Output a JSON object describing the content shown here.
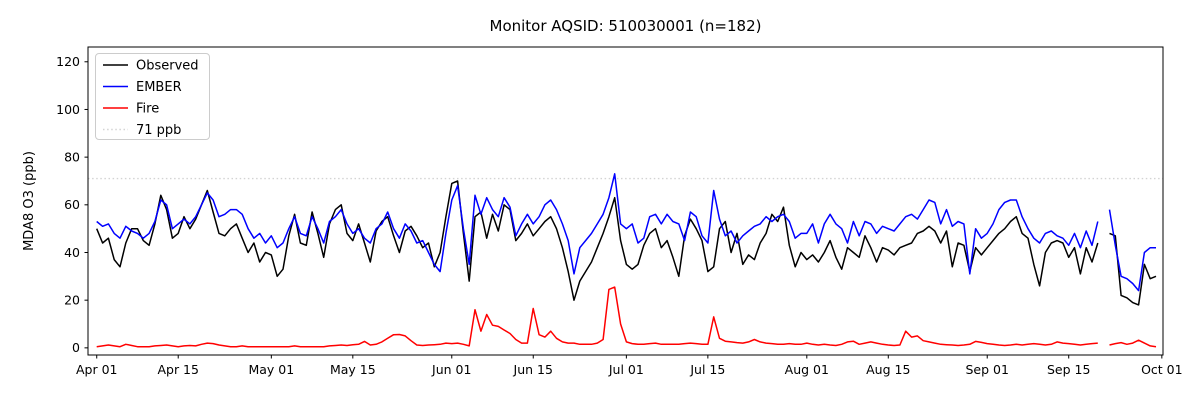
{
  "chart_data": {
    "type": "line",
    "title": "Monitor AQSID: 510030001 (n=182)",
    "ylabel": "MDA8 O3 (ppb)",
    "n_points": 182,
    "grid": false,
    "legend_position": "upper left",
    "ylim": [
      -3,
      126.2
    ],
    "xlim_days": [
      -1.5,
      183.2
    ],
    "yticks": [
      0,
      20,
      40,
      60,
      80,
      100,
      120
    ],
    "x_tick_days": [
      0,
      14,
      30,
      44,
      61,
      75,
      91,
      105,
      122,
      136,
      153,
      167,
      183
    ],
    "x_tick_labels": [
      "Apr 01",
      "Apr 15",
      "May 01",
      "May 15",
      "Jun 01",
      "Jun 15",
      "Jul 01",
      "Jul 15",
      "Aug 01",
      "Aug 15",
      "Sep 01",
      "Sep 15",
      "Oct 01"
    ],
    "reference_line": {
      "label": "71 ppb",
      "value": 71,
      "color": "#d3d3d3",
      "style": "dotted"
    },
    "series": [
      {
        "name": "Observed",
        "color": "#000000",
        "values": [
          50,
          44,
          46,
          37,
          34,
          44,
          50,
          50,
          45,
          43,
          52,
          64,
          58,
          46,
          48,
          55,
          50,
          54,
          60,
          66,
          57,
          48,
          47,
          50,
          52,
          46,
          40,
          44,
          36,
          40,
          39,
          30,
          33,
          47,
          56,
          44,
          43,
          57,
          48,
          38,
          52,
          58,
          60,
          48,
          45,
          52,
          44,
          36,
          49,
          53,
          55,
          47,
          40,
          49,
          51,
          47,
          42,
          44,
          34,
          40,
          55,
          69,
          70,
          48,
          28,
          55,
          57,
          46,
          56,
          49,
          60,
          58,
          45,
          48,
          52,
          47,
          50,
          53,
          55,
          50,
          42,
          32,
          20,
          28,
          32,
          36,
          42,
          48,
          55,
          63,
          45,
          35,
          33,
          35,
          43,
          48,
          50,
          42,
          45,
          38,
          30,
          47,
          54,
          50,
          45,
          32,
          34,
          50,
          53,
          40,
          48,
          35,
          39,
          37,
          44,
          48,
          56,
          53,
          59,
          43,
          34,
          40,
          37,
          39,
          36,
          40,
          45,
          38,
          33,
          42,
          40,
          38,
          47,
          42,
          36,
          42,
          41,
          39,
          42,
          43,
          44,
          48,
          49,
          51,
          49,
          44,
          49,
          34,
          44,
          43,
          32,
          42,
          39,
          42,
          45,
          48,
          50,
          53,
          55,
          48,
          46,
          35,
          26,
          40,
          44,
          45,
          44,
          38,
          42,
          31,
          42,
          36,
          44,
          null,
          48,
          47,
          22,
          21,
          19,
          18,
          35,
          29,
          30
        ]
      },
      {
        "name": "EMBER",
        "color": "#0000ff",
        "values": [
          53,
          51,
          52,
          48,
          46,
          51,
          49,
          48,
          46,
          48,
          53,
          62,
          60,
          50,
          52,
          54,
          52,
          55,
          60,
          65,
          62,
          55,
          56,
          58,
          58,
          56,
          50,
          46,
          48,
          44,
          47,
          42,
          44,
          50,
          55,
          48,
          47,
          55,
          50,
          44,
          53,
          55,
          58,
          52,
          48,
          50,
          46,
          44,
          50,
          52,
          57,
          50,
          46,
          52,
          49,
          44,
          45,
          40,
          35,
          32,
          48,
          62,
          68,
          50,
          35,
          64,
          56,
          63,
          58,
          55,
          63,
          59,
          47,
          52,
          56,
          52,
          55,
          60,
          62,
          58,
          52,
          45,
          31,
          42,
          45,
          48,
          52,
          56,
          63,
          73,
          52,
          50,
          52,
          44,
          46,
          55,
          56,
          52,
          56,
          53,
          52,
          45,
          57,
          55,
          47,
          44,
          66,
          54,
          47,
          49,
          44,
          47,
          49,
          51,
          52,
          55,
          53,
          55,
          56,
          53,
          46,
          48,
          48,
          52,
          44,
          52,
          56,
          52,
          50,
          44,
          53,
          47,
          53,
          52,
          48,
          51,
          50,
          49,
          52,
          55,
          56,
          54,
          58,
          62,
          61,
          52,
          58,
          51,
          53,
          52,
          31,
          50,
          46,
          48,
          52,
          58,
          61,
          62,
          62,
          55,
          50,
          46,
          44,
          48,
          49,
          47,
          46,
          43,
          48,
          42,
          49,
          43,
          53,
          null,
          58,
          43,
          30,
          29,
          27,
          24,
          40,
          42,
          42
        ]
      },
      {
        "name": "Fire",
        "color": "#ff0000",
        "values": [
          0.5,
          0.8,
          1.2,
          0.8,
          0.5,
          1.5,
          1.0,
          0.5,
          0.5,
          0.5,
          0.8,
          1.0,
          1.2,
          0.8,
          0.5,
          0.8,
          1.0,
          0.8,
          1.5,
          2.0,
          1.8,
          1.2,
          0.8,
          0.5,
          0.5,
          0.8,
          0.5,
          0.5,
          0.5,
          0.5,
          0.5,
          0.5,
          0.5,
          0.5,
          0.8,
          0.5,
          0.5,
          0.5,
          0.5,
          0.5,
          0.8,
          1.0,
          1.2,
          1.0,
          1.3,
          1.5,
          2.7,
          1.2,
          1.5,
          2.5,
          4.0,
          5.5,
          5.6,
          5.0,
          3.0,
          1.2,
          1.0,
          1.2,
          1.3,
          1.5,
          2.0,
          1.8,
          2.0,
          1.5,
          0.8,
          16.0,
          7.0,
          14.0,
          9.5,
          9.0,
          7.5,
          6.0,
          3.5,
          2.0,
          2.0,
          16.5,
          5.5,
          4.5,
          7.0,
          4.0,
          2.5,
          2.0,
          2.0,
          1.5,
          1.5,
          1.5,
          2.0,
          3.5,
          24.5,
          25.5,
          10.0,
          2.5,
          1.8,
          1.5,
          1.5,
          1.8,
          2.0,
          1.5,
          1.5,
          1.5,
          1.5,
          1.8,
          2.0,
          1.8,
          1.5,
          1.5,
          13.0,
          4.0,
          2.8,
          2.5,
          2.2,
          2.0,
          2.5,
          3.5,
          2.5,
          2.0,
          1.8,
          1.5,
          1.5,
          1.8,
          1.5,
          1.5,
          2.0,
          1.5,
          1.2,
          1.5,
          1.2,
          1.0,
          1.5,
          2.5,
          2.8,
          1.5,
          2.0,
          2.5,
          2.0,
          1.5,
          1.2,
          1.0,
          1.2,
          7.0,
          4.5,
          5.0,
          3.0,
          2.5,
          2.0,
          1.5,
          1.3,
          1.2,
          1.0,
          1.2,
          1.5,
          2.7,
          2.3,
          1.8,
          1.5,
          1.2,
          1.0,
          1.2,
          1.5,
          1.2,
          1.5,
          1.8,
          1.5,
          1.2,
          1.5,
          2.5,
          2.0,
          1.8,
          1.5,
          1.2,
          1.5,
          1.8,
          2.0,
          null,
          1.2,
          1.8,
          2.2,
          1.5,
          2.0,
          3.2,
          2.0,
          0.8,
          0.5
        ]
      }
    ]
  }
}
